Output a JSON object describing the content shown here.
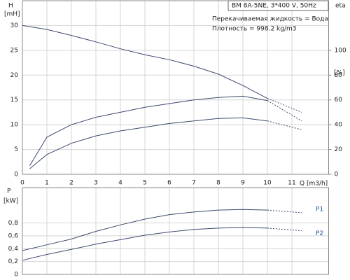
{
  "chart_data": [
    {
      "type": "line",
      "title": "BM 8A-5NE, 3*400 V, 50Hz",
      "annotations": [
        "Перекачиваемая жидкость = Вода",
        "Плотность = 998.2 kg/m3"
      ],
      "ylabel": "H",
      "ylabel_unit": "[mH]",
      "y2label": "eta",
      "y2label_unit": "[%]",
      "xlabel": "Q [m3/h]",
      "xlim": [
        0,
        12.5
      ],
      "xticks": [
        0,
        1,
        2,
        3,
        4,
        5,
        6,
        7,
        8,
        9,
        10,
        11
      ],
      "ylim": [
        0,
        35
      ],
      "yticks": [
        0,
        5,
        10,
        15,
        20,
        25,
        30
      ],
      "y2lim": [
        0,
        140
      ],
      "y2ticks": [
        0,
        20,
        40,
        60,
        80,
        100
      ],
      "grid": true,
      "dotted_from": 10,
      "series": [
        {
          "color": "#3d4a6e",
          "x": [
            0,
            1,
            2,
            3,
            4,
            5,
            6,
            7,
            8,
            9,
            10,
            11.4
          ],
          "values": [
            30,
            29.2,
            28,
            26.7,
            25.3,
            24.1,
            23.1,
            21.8,
            20.2,
            17.9,
            15.3,
            12.5
          ]
        },
        {
          "color": "#3d4a6e",
          "axis": "y2",
          "x": [
            0.3,
            1,
            2,
            3,
            4,
            5,
            6,
            7,
            8,
            9,
            10,
            11.4
          ],
          "values": [
            7,
            30,
            40,
            46,
            50,
            54,
            57,
            60,
            62,
            63,
            59.5,
            43
          ]
        },
        {
          "color": "#3d4a6e",
          "axis": "y2",
          "x": [
            0.3,
            1,
            2,
            3,
            4,
            5,
            6,
            7,
            8,
            9,
            10,
            11.4
          ],
          "values": [
            4.5,
            16,
            25,
            31,
            35,
            38,
            41,
            43,
            45,
            45.5,
            43,
            36
          ]
        }
      ]
    },
    {
      "type": "line",
      "ylabel": "P",
      "ylabel_unit": "[kW]",
      "xlim": [
        0,
        12.5
      ],
      "xticks": [
        0,
        1,
        2,
        3,
        4,
        5,
        6,
        7,
        8,
        9,
        10,
        11
      ],
      "ylim": [
        0,
        1.35
      ],
      "yticks": [
        0,
        {
          "value": 0.2,
          "label": "0,2"
        },
        {
          "value": 0.4,
          "label": "0,4"
        },
        {
          "value": 0.6,
          "label": "0,6"
        },
        {
          "value": 0.8,
          "label": "0,8"
        }
      ],
      "grid": true,
      "dotted_from": 10,
      "series": [
        {
          "name": "P1",
          "color": "#3d4a6e",
          "x": [
            0,
            1,
            2,
            3,
            4,
            5,
            6,
            7,
            8,
            9,
            10,
            11.4
          ],
          "values": [
            0.37,
            0.46,
            0.55,
            0.67,
            0.77,
            0.86,
            0.93,
            0.97,
            1.0,
            1.01,
            1.0,
            0.96
          ]
        },
        {
          "name": "P2",
          "color": "#3d4a6e",
          "x": [
            0,
            1,
            2,
            3,
            4,
            5,
            6,
            7,
            8,
            9,
            10,
            11.4
          ],
          "values": [
            0.22,
            0.31,
            0.39,
            0.47,
            0.54,
            0.61,
            0.66,
            0.7,
            0.72,
            0.73,
            0.72,
            0.68
          ]
        }
      ]
    }
  ]
}
